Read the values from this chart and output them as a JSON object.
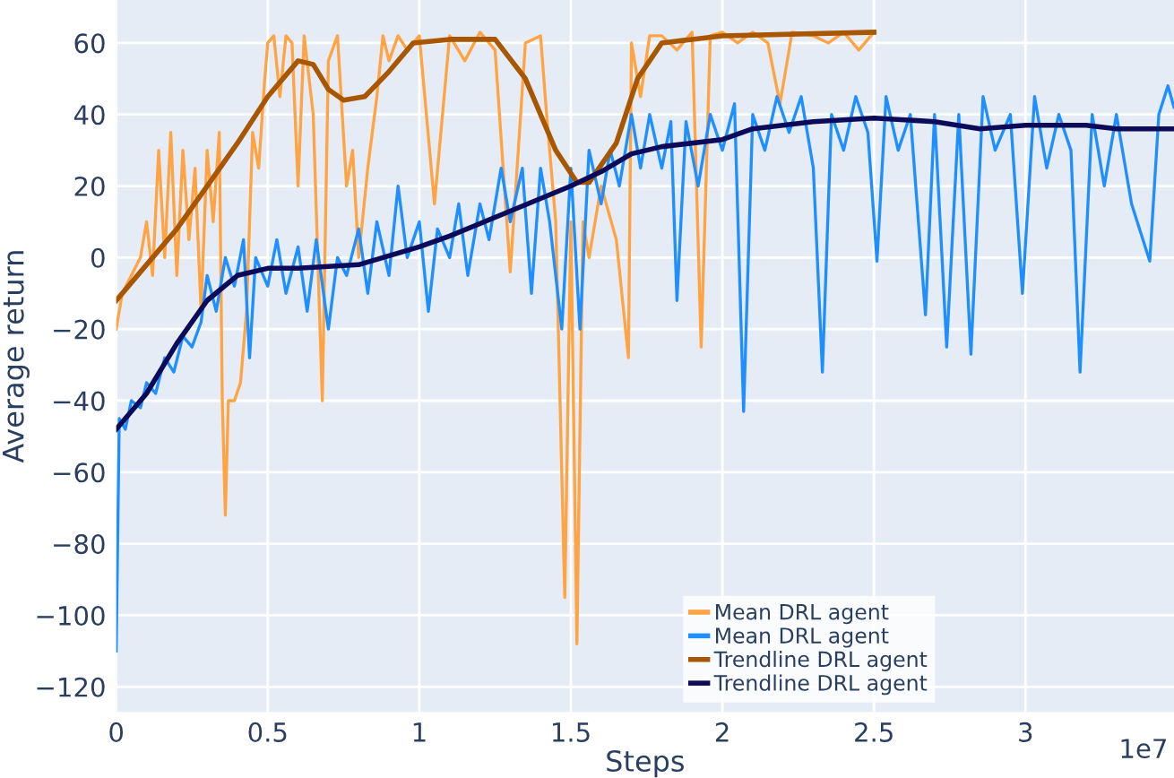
{
  "chart_data": {
    "type": "line",
    "xlabel": "Steps",
    "ylabel": "Average return",
    "annotations": [
      "1e7"
    ],
    "xlim": [
      0,
      3.49
    ],
    "ylim": [
      -127,
      72
    ],
    "xticks": [
      0,
      0.5,
      1,
      1.5,
      2,
      2.5,
      3
    ],
    "yticks": [
      {
        "value": -120,
        "label": "−120"
      },
      {
        "value": -100,
        "label": "−100"
      },
      {
        "value": -80,
        "label": "−80"
      },
      {
        "value": -60,
        "label": "−60"
      },
      {
        "value": -40,
        "label": "−40"
      },
      {
        "value": -20,
        "label": "−20"
      },
      0,
      20,
      40,
      60
    ],
    "grid": true,
    "legend": "bottom",
    "line_style": "solid",
    "series": [
      {
        "name": "Mean DRL agent",
        "color": "#ffa343",
        "x": [
          0,
          0.02,
          0.05,
          0.08,
          0.1,
          0.12,
          0.14,
          0.16,
          0.18,
          0.2,
          0.22,
          0.24,
          0.26,
          0.28,
          0.3,
          0.32,
          0.34,
          0.35,
          0.36,
          0.37,
          0.39,
          0.41,
          0.43,
          0.45,
          0.47,
          0.49,
          0.5,
          0.52,
          0.54,
          0.56,
          0.58,
          0.6,
          0.62,
          0.65,
          0.68,
          0.7,
          0.73,
          0.76,
          0.78,
          0.8,
          0.83,
          0.86,
          0.88,
          0.9,
          0.93,
          0.96,
          1.0,
          1.05,
          1.1,
          1.15,
          1.2,
          1.25,
          1.3,
          1.35,
          1.4,
          1.42,
          1.45,
          1.48,
          1.5,
          1.52,
          1.54,
          1.56,
          1.6,
          1.65,
          1.69,
          1.7,
          1.73,
          1.76,
          1.8,
          1.85,
          1.9,
          1.93,
          1.96,
          2.0,
          2.05,
          2.1,
          2.15,
          2.19,
          2.23,
          2.3,
          2.35,
          2.4,
          2.45,
          2.5
        ],
        "values": [
          -20,
          -10,
          -5,
          0,
          10,
          -5,
          30,
          0,
          35,
          -5,
          30,
          5,
          25,
          -15,
          30,
          10,
          35,
          -40,
          -72,
          -40,
          -40,
          -35,
          -15,
          35,
          25,
          50,
          60,
          62,
          45,
          62,
          60,
          20,
          62,
          40,
          -40,
          55,
          62,
          20,
          30,
          0,
          25,
          45,
          62,
          55,
          62,
          58,
          62,
          15,
          62,
          55,
          63,
          58,
          -4,
          60,
          62,
          40,
          10,
          -95,
          10,
          -108,
          10,
          0,
          20,
          5,
          -28,
          60,
          45,
          62,
          62,
          58,
          63,
          -25,
          62,
          63,
          60,
          63,
          60,
          43,
          63,
          62,
          60,
          63,
          58,
          63
        ]
      },
      {
        "name": "Mean DRL agent",
        "color": "#1f8fff",
        "x": [
          0,
          0.01,
          0.03,
          0.05,
          0.08,
          0.1,
          0.13,
          0.16,
          0.19,
          0.22,
          0.25,
          0.28,
          0.3,
          0.33,
          0.36,
          0.39,
          0.42,
          0.44,
          0.46,
          0.5,
          0.53,
          0.56,
          0.6,
          0.63,
          0.66,
          0.7,
          0.73,
          0.76,
          0.8,
          0.83,
          0.86,
          0.9,
          0.93,
          0.96,
          1.0,
          1.03,
          1.06,
          1.1,
          1.13,
          1.16,
          1.2,
          1.23,
          1.27,
          1.3,
          1.34,
          1.37,
          1.4,
          1.43,
          1.47,
          1.5,
          1.53,
          1.56,
          1.6,
          1.63,
          1.66,
          1.7,
          1.73,
          1.76,
          1.8,
          1.83,
          1.85,
          1.88,
          1.92,
          1.96,
          2.0,
          2.04,
          2.07,
          2.1,
          2.14,
          2.18,
          2.22,
          2.26,
          2.3,
          2.33,
          2.36,
          2.4,
          2.44,
          2.48,
          2.51,
          2.54,
          2.58,
          2.62,
          2.67,
          2.7,
          2.74,
          2.78,
          2.82,
          2.86,
          2.9,
          2.95,
          2.99,
          3.03,
          3.07,
          3.11,
          3.15,
          3.18,
          3.22,
          3.26,
          3.3,
          3.35,
          3.41,
          3.44,
          3.47,
          3.49
        ],
        "values": [
          -110,
          -45,
          -48,
          -40,
          -42,
          -35,
          -38,
          -28,
          -32,
          -22,
          -25,
          -18,
          -5,
          -15,
          0,
          -8,
          5,
          -28,
          0,
          -8,
          5,
          -10,
          3,
          -15,
          5,
          -20,
          0,
          -5,
          8,
          -10,
          10,
          -5,
          20,
          0,
          10,
          -15,
          8,
          0,
          15,
          -5,
          15,
          5,
          25,
          10,
          25,
          -10,
          25,
          10,
          -20,
          25,
          -20,
          30,
          15,
          30,
          20,
          40,
          25,
          40,
          25,
          38,
          -12,
          38,
          20,
          40,
          30,
          43,
          -43,
          40,
          30,
          45,
          35,
          45,
          25,
          -32,
          40,
          30,
          45,
          35,
          -1,
          45,
          30,
          40,
          -16,
          40,
          -25,
          40,
          -27,
          45,
          30,
          40,
          -10,
          45,
          25,
          40,
          30,
          -32,
          40,
          20,
          40,
          15,
          -1,
          40,
          48,
          42
        ]
      },
      {
        "name": "Trendline DRL agent",
        "color": "#a85600",
        "x": [
          0,
          0.1,
          0.2,
          0.3,
          0.4,
          0.5,
          0.6,
          0.65,
          0.7,
          0.75,
          0.82,
          0.9,
          0.98,
          1.1,
          1.25,
          1.35,
          1.45,
          1.52,
          1.56,
          1.65,
          1.72,
          1.8,
          1.9,
          2.0,
          2.5
        ],
        "values": [
          -12,
          -2,
          8,
          20,
          32,
          45,
          55,
          54,
          47,
          44,
          45,
          52,
          60,
          61,
          61,
          50,
          30,
          21,
          21,
          32,
          50,
          60,
          61,
          62,
          63
        ]
      },
      {
        "name": "Trendline DRL agent",
        "color": "#0b0b5a",
        "x": [
          0,
          0.1,
          0.2,
          0.3,
          0.4,
          0.5,
          0.6,
          0.8,
          1.0,
          1.1,
          1.3,
          1.5,
          1.6,
          1.7,
          1.8,
          2.0,
          2.1,
          2.3,
          2.5,
          2.7,
          2.85,
          3.0,
          3.2,
          3.3,
          3.49
        ],
        "values": [
          -48,
          -38,
          -24,
          -12,
          -5,
          -3,
          -3,
          -2,
          3,
          6,
          13,
          20,
          24,
          29,
          31,
          33,
          36,
          38,
          39,
          38,
          36,
          37,
          37,
          36,
          36
        ]
      }
    ]
  }
}
